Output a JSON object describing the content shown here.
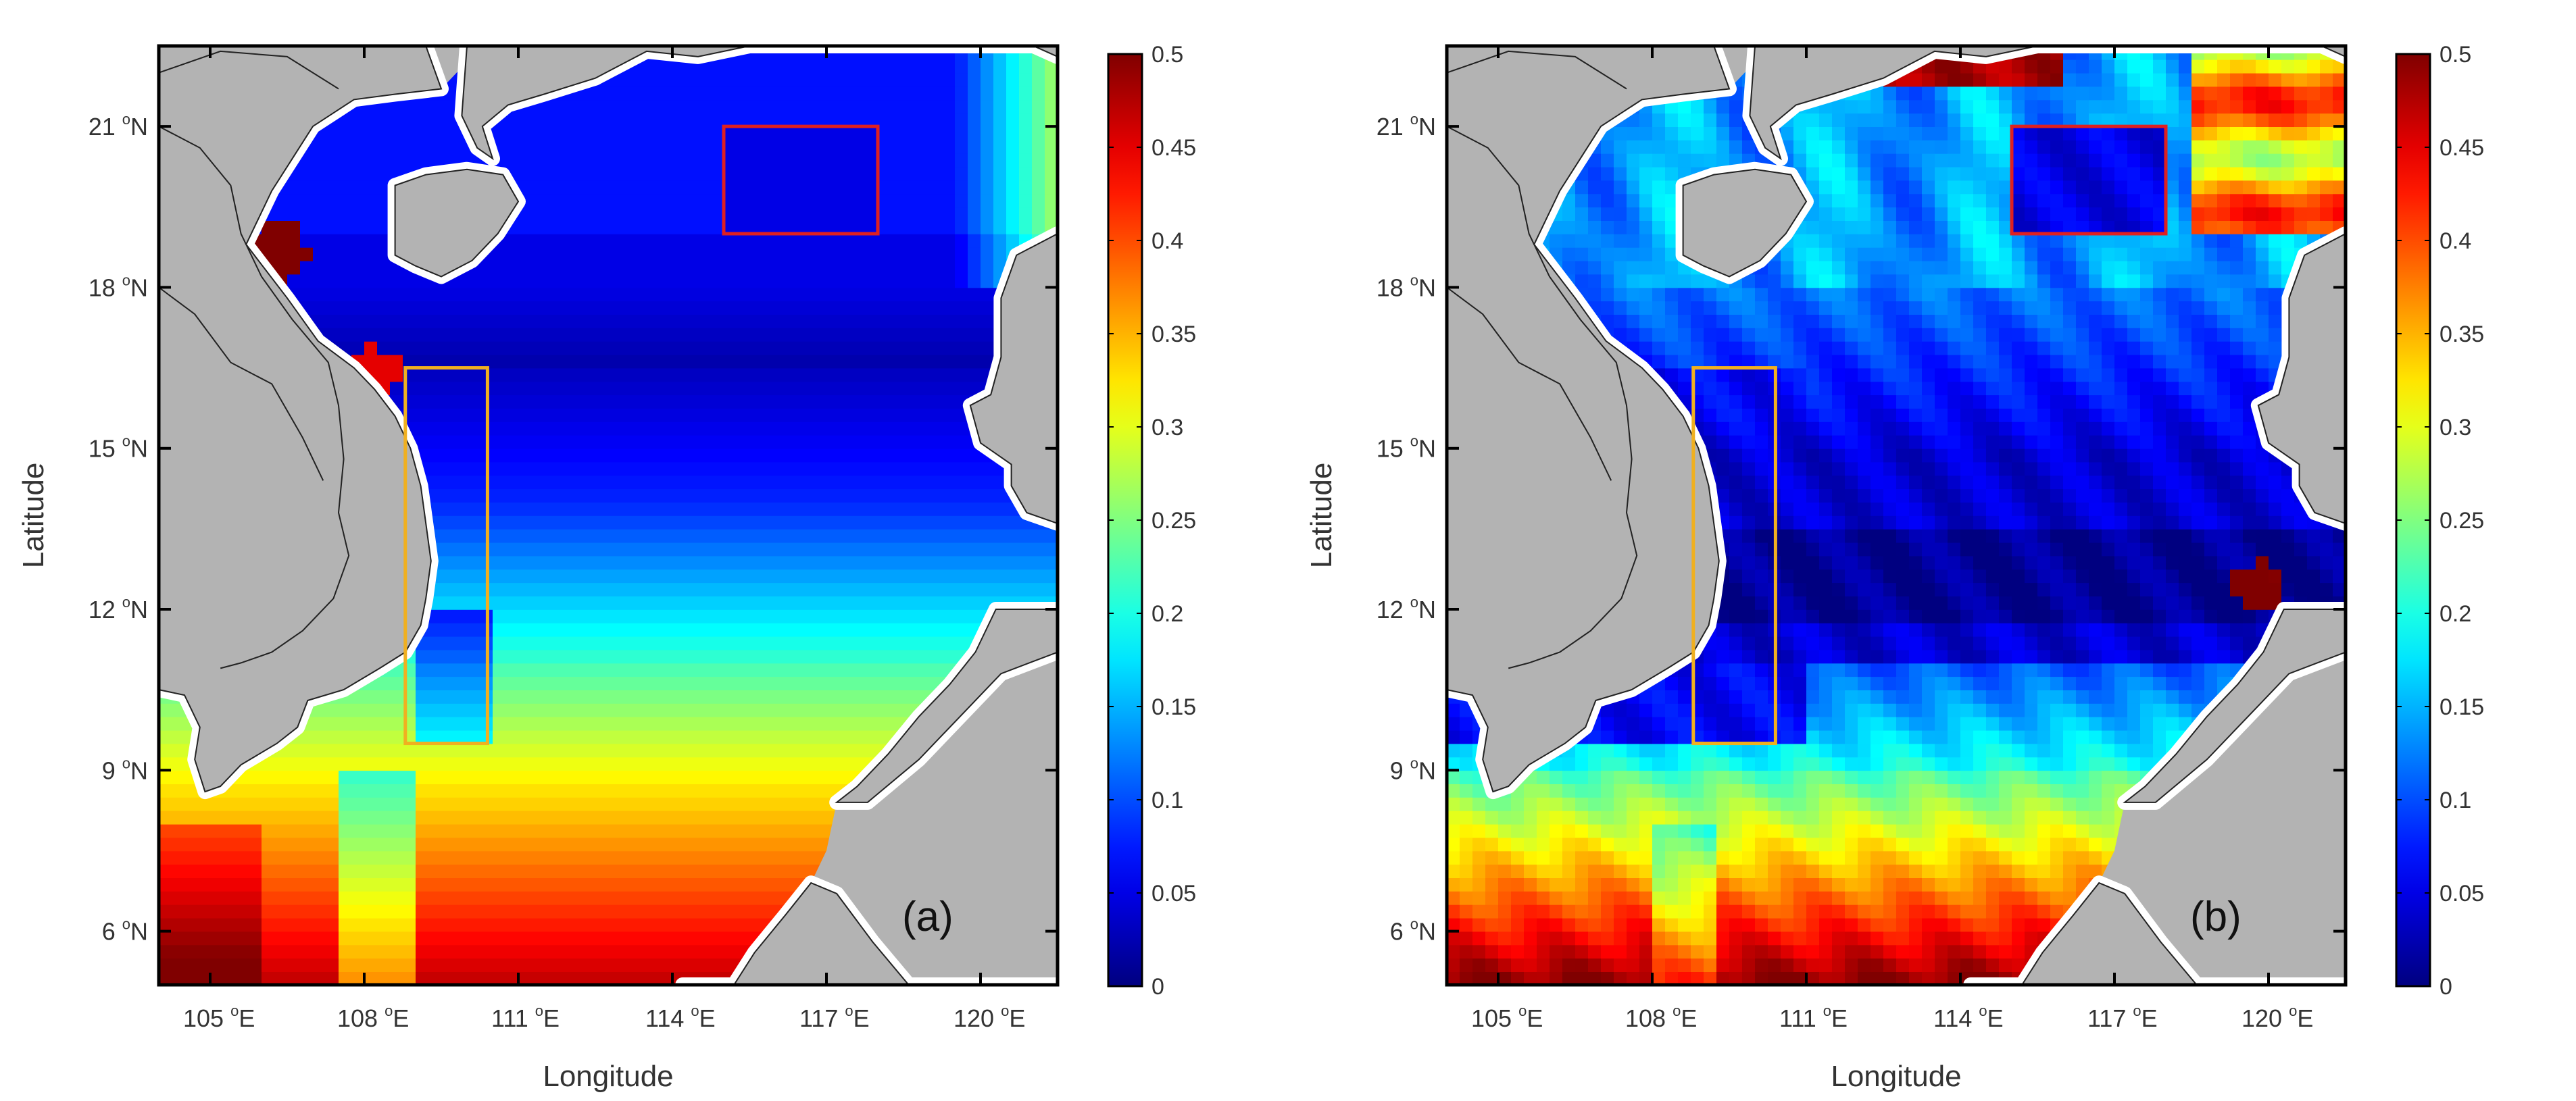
{
  "panels": [
    {
      "id": "a",
      "label": "(a)",
      "xlabel": "Longitude",
      "ylabel": "Latitude",
      "x_ticks": [
        {
          "v": 105,
          "main": "105",
          "unit": "E"
        },
        {
          "v": 108,
          "main": "108",
          "unit": "E"
        },
        {
          "v": 111,
          "main": "111",
          "unit": "E"
        },
        {
          "v": 114,
          "main": "114",
          "unit": "E"
        },
        {
          "v": 117,
          "main": "117",
          "unit": "E"
        },
        {
          "v": 120,
          "main": "120",
          "unit": "E"
        }
      ],
      "y_ticks": [
        {
          "v": 6,
          "main": "6",
          "unit": "N"
        },
        {
          "v": 9,
          "main": "9",
          "unit": "N"
        },
        {
          "v": 12,
          "main": "12",
          "unit": "N"
        },
        {
          "v": 15,
          "main": "15",
          "unit": "N"
        },
        {
          "v": 18,
          "main": "18",
          "unit": "N"
        },
        {
          "v": 21,
          "main": "21",
          "unit": "N"
        }
      ],
      "colorbar_ticks": [
        "0",
        "0.05",
        "0.1",
        "0.15",
        "0.2",
        "0.25",
        "0.3",
        "0.35",
        "0.4",
        "0.45",
        "0.5"
      ],
      "boxes": [
        {
          "name": "red-box",
          "color": "#e02020",
          "lon": [
            115.0,
            118.0
          ],
          "lat": [
            19.0,
            21.0
          ]
        },
        {
          "name": "orange-box",
          "color": "#f0b020",
          "lon": [
            108.8,
            110.4
          ],
          "lat": [
            9.5,
            16.5
          ]
        }
      ]
    },
    {
      "id": "b",
      "label": "(b)",
      "xlabel": "Longitude",
      "ylabel": "Latitude",
      "x_ticks": [
        {
          "v": 105,
          "main": "105",
          "unit": "E"
        },
        {
          "v": 108,
          "main": "108",
          "unit": "E"
        },
        {
          "v": 111,
          "main": "111",
          "unit": "E"
        },
        {
          "v": 114,
          "main": "114",
          "unit": "E"
        },
        {
          "v": 117,
          "main": "117",
          "unit": "E"
        },
        {
          "v": 120,
          "main": "120",
          "unit": "E"
        }
      ],
      "y_ticks": [
        {
          "v": 6,
          "main": "6",
          "unit": "N"
        },
        {
          "v": 9,
          "main": "9",
          "unit": "N"
        },
        {
          "v": 12,
          "main": "12",
          "unit": "N"
        },
        {
          "v": 15,
          "main": "15",
          "unit": "N"
        },
        {
          "v": 18,
          "main": "18",
          "unit": "N"
        },
        {
          "v": 21,
          "main": "21",
          "unit": "N"
        }
      ],
      "colorbar_ticks": [
        "0",
        "0.05",
        "0.1",
        "0.15",
        "0.2",
        "0.25",
        "0.3",
        "0.35",
        "0.4",
        "0.45",
        "0.5"
      ],
      "boxes": [
        {
          "name": "red-box",
          "color": "#e02020",
          "lon": [
            115.0,
            118.0
          ],
          "lat": [
            19.0,
            21.0
          ]
        },
        {
          "name": "orange-box",
          "color": "#f0b020",
          "lon": [
            108.8,
            110.4
          ],
          "lat": [
            9.5,
            16.5
          ]
        }
      ]
    }
  ],
  "map_extent": {
    "lon": [
      104.0,
      121.5
    ],
    "lat": [
      5.0,
      22.5
    ]
  },
  "colorbar_range": [
    0,
    0.5
  ],
  "colors": {
    "land": "#b3b3b3",
    "coast": "#ffffff",
    "border": "#000000"
  }
}
